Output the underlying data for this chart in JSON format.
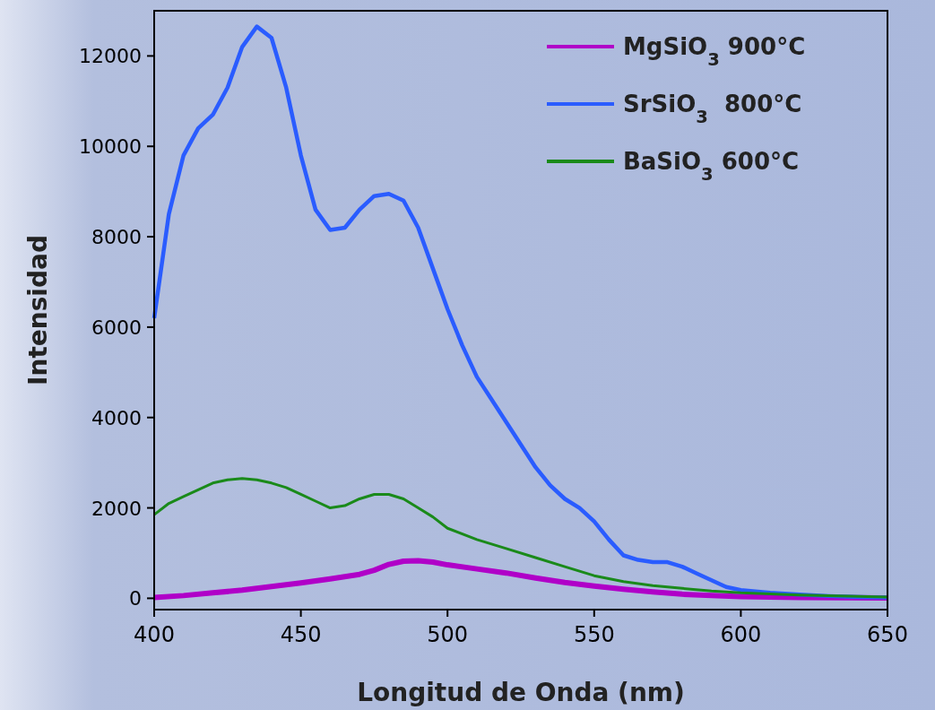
{
  "chart_data": {
    "type": "line",
    "xlabel": "Longitud de Onda (nm)",
    "ylabel": "Intensidad",
    "xlim": [
      400,
      650
    ],
    "xticks": [
      400,
      450,
      500,
      550,
      600,
      650
    ],
    "ylim": [
      -250,
      13000
    ],
    "yticks": [
      0,
      2000,
      4000,
      6000,
      8000,
      10000,
      12000
    ],
    "grid": false,
    "legend": "top right",
    "marker": "none",
    "line_style": "solid",
    "series": [
      {
        "name": "MgSiO$_{3}$ 900°C",
        "color": "#b000c8",
        "x": [
          400,
          410,
          420,
          430,
          440,
          450,
          460,
          470,
          475,
          480,
          485,
          490,
          495,
          500,
          510,
          520,
          530,
          540,
          550,
          560,
          570,
          580,
          590,
          600,
          620,
          650
        ],
        "values": [
          20,
          60,
          120,
          180,
          260,
          340,
          430,
          530,
          620,
          750,
          820,
          830,
          800,
          740,
          650,
          560,
          450,
          350,
          270,
          200,
          140,
          90,
          60,
          40,
          20,
          10
        ]
      },
      {
        "name": "SrSiO$_{3}$  800°C",
        "color": "#2a5cff",
        "x": [
          400,
          405,
          410,
          415,
          420,
          425,
          430,
          435,
          440,
          445,
          450,
          455,
          460,
          465,
          470,
          475,
          480,
          485,
          490,
          495,
          500,
          505,
          510,
          515,
          520,
          525,
          530,
          535,
          540,
          545,
          550,
          555,
          560,
          565,
          570,
          575,
          580,
          585,
          590,
          595,
          600,
          610,
          620,
          630,
          640,
          650
        ],
        "values": [
          6200,
          8500,
          9800,
          10400,
          10700,
          11300,
          12200,
          12650,
          12400,
          11300,
          9800,
          8600,
          8150,
          8200,
          8600,
          8900,
          8950,
          8800,
          8200,
          7300,
          6400,
          5600,
          4900,
          4400,
          3900,
          3400,
          2900,
          2500,
          2200,
          2000,
          1700,
          1300,
          950,
          850,
          800,
          800,
          700,
          550,
          400,
          250,
          180,
          120,
          80,
          50,
          30,
          20
        ]
      },
      {
        "name": "BaSiO$_{3}$ 600°C",
        "color": "#1a8a1a",
        "x": [
          400,
          405,
          410,
          415,
          420,
          425,
          430,
          435,
          440,
          445,
          450,
          455,
          460,
          465,
          470,
          475,
          480,
          485,
          490,
          495,
          500,
          510,
          520,
          530,
          540,
          550,
          560,
          570,
          580,
          590,
          600,
          620,
          650
        ],
        "values": [
          1850,
          2100,
          2250,
          2400,
          2550,
          2620,
          2650,
          2620,
          2550,
          2450,
          2300,
          2150,
          2000,
          2050,
          2200,
          2300,
          2300,
          2200,
          2000,
          1800,
          1550,
          1300,
          1100,
          900,
          700,
          500,
          370,
          280,
          220,
          160,
          120,
          70,
          30
        ]
      }
    ]
  }
}
